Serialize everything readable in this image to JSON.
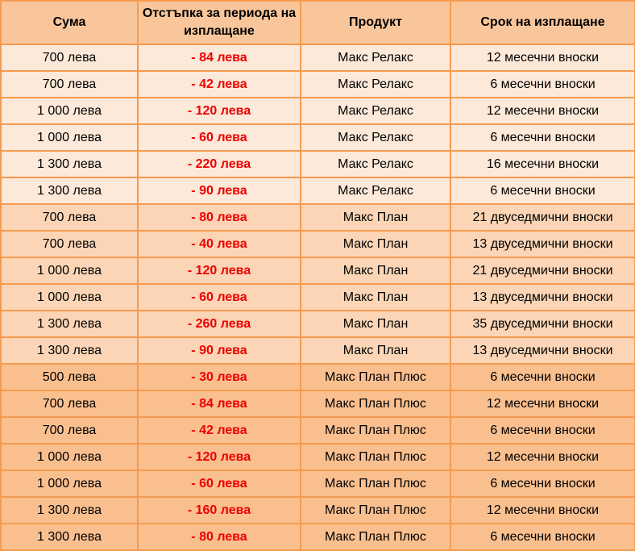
{
  "table": {
    "headers": {
      "amount": "Сума",
      "discount": "Отстъпка за периода на изплащане",
      "product": "Продукт",
      "term": "Срок на изплащане"
    },
    "colors": {
      "header_bg": "#f9c69b",
      "group_relax_bg": "#fde9d9",
      "group_plan_bg": "#fbd5b5",
      "group_plan_plus_bg": "#fabf8f",
      "border": "#f59a4f",
      "discount_text": "#ee0000"
    },
    "rows": [
      {
        "amount": "700 лева",
        "discount": "- 84 лева",
        "product": "Макс Релакс",
        "term": "12 месечни вноски"
      },
      {
        "amount": "700 лева",
        "discount": "- 42 лева",
        "product": "Макс Релакс",
        "term": "6 месечни вноски"
      },
      {
        "amount": "1 000 лева",
        "discount": "- 120 лева",
        "product": "Макс Релакс",
        "term": "12 месечни вноски"
      },
      {
        "amount": "1 000 лева",
        "discount": "- 60 лева",
        "product": "Макс Релакс",
        "term": "6 месечни вноски"
      },
      {
        "amount": "1 300 лева",
        "discount": "- 220 лева",
        "product": "Макс Релакс",
        "term": "16 месечни вноски"
      },
      {
        "amount": "1 300 лева",
        "discount": "- 90 лева",
        "product": "Макс Релакс",
        "term": "6 месечни вноски"
      },
      {
        "amount": "700 лева",
        "discount": "- 80 лева",
        "product": "Макс План",
        "term": "21 двуседмични вноски"
      },
      {
        "amount": "700 лева",
        "discount": "- 40 лева",
        "product": "Макс План",
        "term": "13 двуседмични вноски"
      },
      {
        "amount": "1 000 лева",
        "discount": "- 120 лева",
        "product": "Макс План",
        "term": "21 двуседмични вноски"
      },
      {
        "amount": "1 000 лева",
        "discount": "- 60 лева",
        "product": "Макс План",
        "term": "13 двуседмични вноски"
      },
      {
        "amount": "1 300 лева",
        "discount": "- 260 лева",
        "product": "Макс План",
        "term": "35 двуседмични вноски"
      },
      {
        "amount": "1 300 лева",
        "discount": "- 90 лева",
        "product": "Макс План",
        "term": "13 двуседмични вноски"
      },
      {
        "amount": "500 лева",
        "discount": "- 30 лева",
        "product": "Макс План Плюс",
        "term": "6 месечни вноски"
      },
      {
        "amount": "700 лева",
        "discount": "- 84 лева",
        "product": "Макс План Плюс",
        "term": "12 месечни вноски"
      },
      {
        "amount": "700 лева",
        "discount": "- 42 лева",
        "product": "Макс План Плюс",
        "term": "6 месечни вноски"
      },
      {
        "amount": "1 000 лева",
        "discount": "- 120 лева",
        "product": "Макс План Плюс",
        "term": "12 месечни вноски"
      },
      {
        "amount": "1 000 лева",
        "discount": "- 60 лева",
        "product": "Макс План Плюс",
        "term": "6 месечни вноски"
      },
      {
        "amount": "1 300 лева",
        "discount": "- 160 лева",
        "product": "Макс План Плюс",
        "term": "12 месечни вноски"
      },
      {
        "amount": "1 300 лева",
        "discount": "- 80 лева",
        "product": "Макс План Плюс",
        "term": "6 месечни вноски"
      }
    ]
  }
}
